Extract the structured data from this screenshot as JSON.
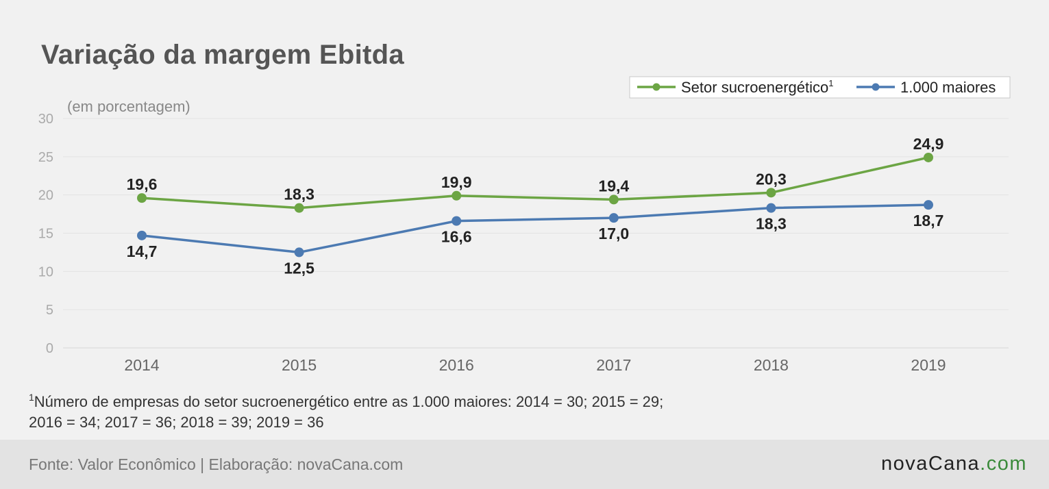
{
  "title": "Variação da margem Ebitda",
  "unit_note": "(em porcentagem)",
  "legend": {
    "items": [
      {
        "label": "Setor sucroenergético",
        "sup": "1",
        "color": "#6ca544"
      },
      {
        "label": "1.000 maiores",
        "sup": "",
        "color": "#4c7ab2"
      }
    ]
  },
  "chart_data": {
    "type": "line",
    "x": [
      "2014",
      "2015",
      "2016",
      "2017",
      "2018",
      "2019"
    ],
    "series": [
      {
        "name": "Setor sucroenergético",
        "values": [
          19.6,
          18.3,
          19.9,
          19.4,
          20.3,
          24.9
        ],
        "labels": [
          "19,6",
          "18,3",
          "19,9",
          "19,4",
          "20,3",
          "24,9"
        ],
        "color": "#6ca544"
      },
      {
        "name": "1.000 maiores",
        "values": [
          14.7,
          12.5,
          16.6,
          17.0,
          18.3,
          18.7
        ],
        "labels": [
          "14,7",
          "12,5",
          "16,6",
          "17,0",
          "18,3",
          "18,7"
        ],
        "color": "#4c7ab2"
      }
    ],
    "yticks": [
      "0",
      "5",
      "10",
      "15",
      "20",
      "25",
      "30"
    ],
    "ylim": [
      0,
      30
    ],
    "grid": true,
    "legend_position": "top-right"
  },
  "footnote": {
    "sup": "1",
    "line1": "Número de empresas do setor sucroenergético entre as 1.000 maiores: 2014 = 30; 2015 = 29;",
    "line2": "2016 = 34; 2017 = 36; 2018 = 39; 2019 = 36"
  },
  "footer": {
    "source": "Fonte: Valor Econômico | Elaboração: novaCana.com",
    "logo_main": "novaCana",
    "logo_suffix": ".com"
  }
}
